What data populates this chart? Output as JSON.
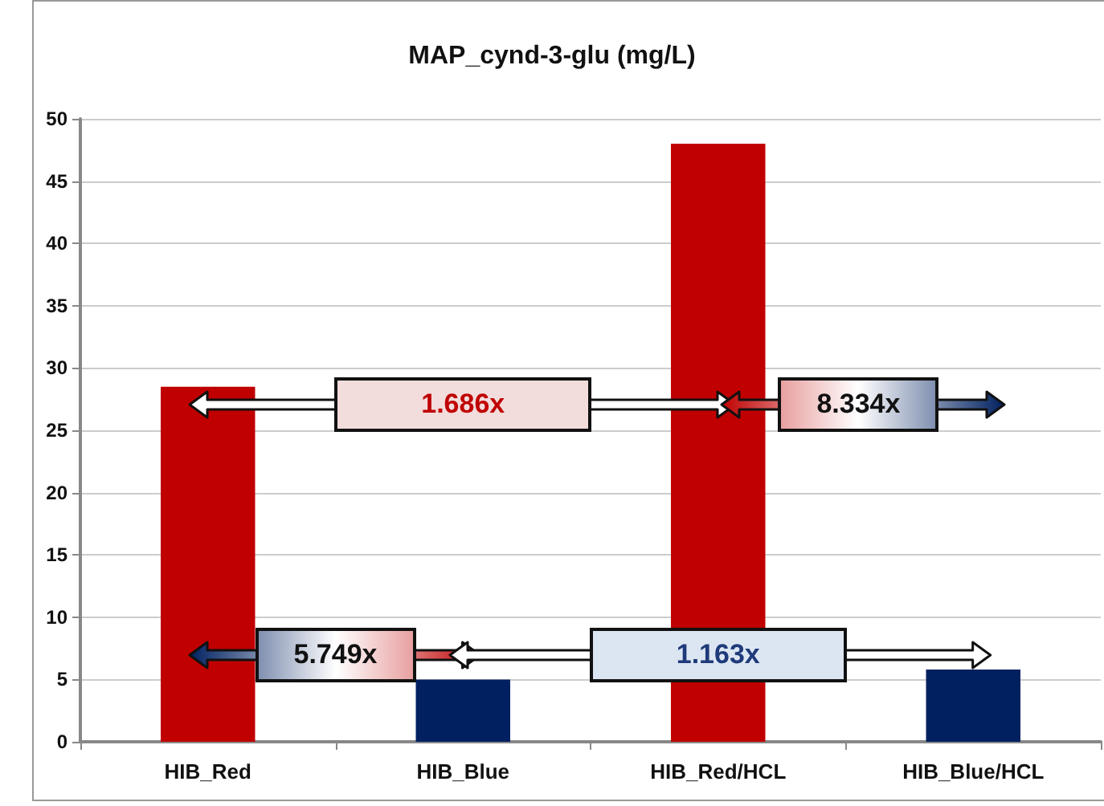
{
  "chart_data": {
    "type": "bar",
    "title": "MAP_cynd-3-glu (mg/L)",
    "categories": [
      "HIB_Red",
      "HIB_Blue",
      "HIB_Red/HCL",
      "HIB_Blue/HCL"
    ],
    "values": [
      28.5,
      5.0,
      48.0,
      5.8
    ],
    "colors": [
      "#c00000",
      "#002060",
      "#c00000",
      "#002060"
    ],
    "ylim": [
      0,
      50
    ],
    "yticks": [
      0,
      5,
      10,
      15,
      20,
      25,
      30,
      35,
      40,
      45,
      50
    ],
    "grid": "y",
    "annotations": [
      "1.686x",
      "8.334x",
      "5.749x",
      "1.163x"
    ]
  }
}
